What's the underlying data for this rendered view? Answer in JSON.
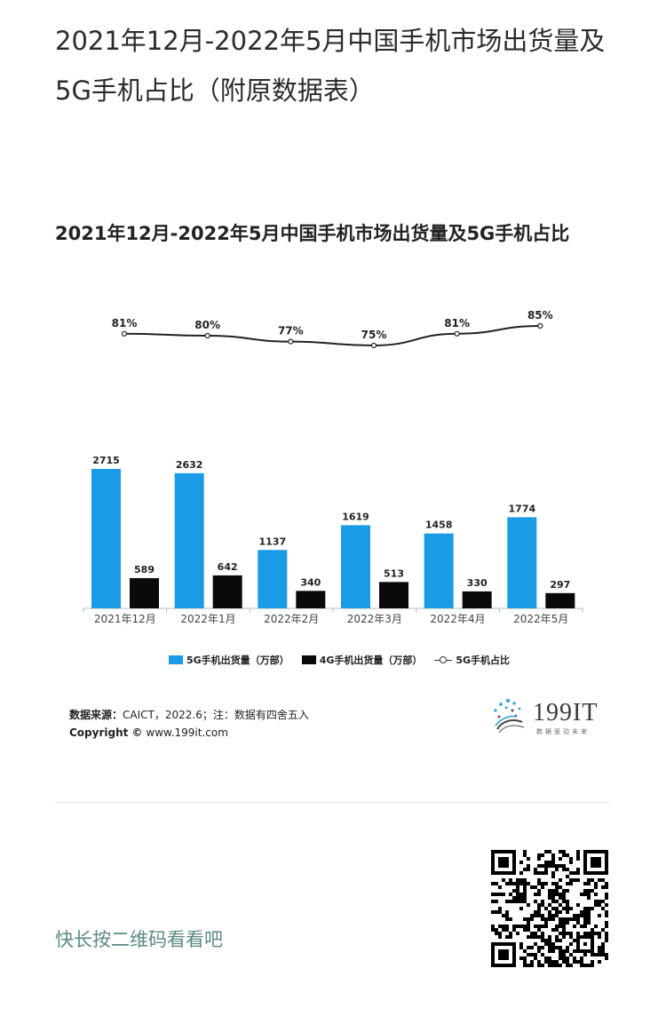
{
  "article": {
    "title": "2021年12月-2022年5月中国手机市场出货量及5G手机占比（附原数据表）"
  },
  "chart_data": {
    "type": "bar",
    "title": "2021年12月-2022年5月中国手机市场出货量及5G手机占比",
    "categories": [
      "2021年12月",
      "2022年1月",
      "2022年2月",
      "2022年3月",
      "2022年4月",
      "2022年5月"
    ],
    "series": [
      {
        "name": "5G手机出货量（万部）",
        "kind": "bar",
        "color": "#1a9be6",
        "values": [
          2715,
          2632,
          1137,
          1619,
          1458,
          1774
        ]
      },
      {
        "name": "4G手机出货量（万部）",
        "kind": "bar",
        "color": "#0a0a0a",
        "values": [
          589,
          642,
          340,
          513,
          330,
          297
        ]
      },
      {
        "name": "5G手机占比",
        "kind": "line",
        "color": "#222222",
        "values": [
          81,
          80,
          77,
          75,
          81,
          85
        ],
        "labels": [
          "81%",
          "80%",
          "77%",
          "75%",
          "81%",
          "85%"
        ]
      }
    ],
    "grid": false,
    "legend_position": "bottom"
  },
  "source": {
    "label": "数据来源：",
    "text": "CAICT，2022.6；注：数据有四舍五入",
    "copyright_label": "Copyright ©",
    "copyright_url": "www.199it.com"
  },
  "logo": {
    "name": "199IT",
    "tagline": "数据驱动未来"
  },
  "footer": {
    "qr_hint": "快长按二维码看看吧"
  }
}
